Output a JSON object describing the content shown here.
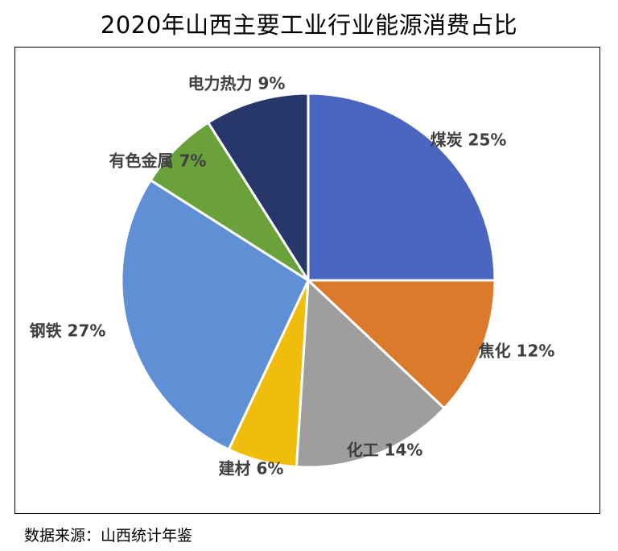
{
  "title": "2020年山西主要工业行业能源消费占比",
  "source": "数据来源：山西统计年鉴",
  "chart_data": {
    "type": "pie",
    "title": "2020年山西主要工业行业能源消费占比",
    "legend": "none",
    "slices": [
      {
        "label": "煤炭",
        "value": 25,
        "display": "25%",
        "color": "#4a66c0"
      },
      {
        "label": "焦化",
        "value": 12,
        "display": "12%",
        "color": "#db7a2a"
      },
      {
        "label": "化工",
        "value": 14,
        "display": "14%",
        "color": "#9e9e9e"
      },
      {
        "label": "建材",
        "value": 6,
        "display": "6%",
        "color": "#f1bd0d"
      },
      {
        "label": "钢铁",
        "value": 27,
        "display": "27%",
        "color": "#5f8fd4"
      },
      {
        "label": "有色金属",
        "value": 7,
        "display": "7%",
        "color": "#6ba13b"
      },
      {
        "label": "电力热力",
        "value": 9,
        "display": "9%",
        "color": "#273769"
      }
    ]
  }
}
